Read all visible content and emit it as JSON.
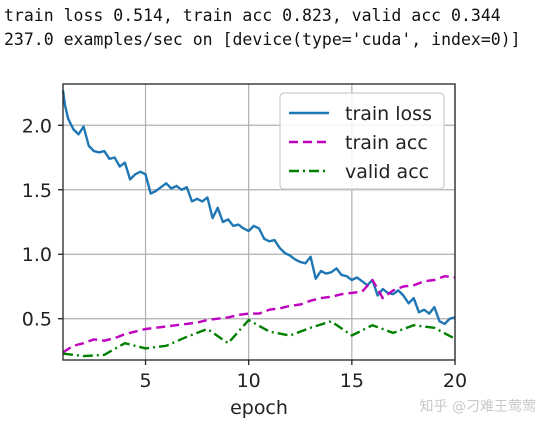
{
  "log": {
    "line1": "train loss 0.514, train acc 0.823, valid acc 0.344",
    "line2": "237.0 examples/sec on [device(type='cuda', index=0)]"
  },
  "watermark": "知乎 @刁难王莺莺",
  "chart_data": {
    "type": "line",
    "xlabel": "epoch",
    "ylabel": "",
    "xlim": [
      1,
      20
    ],
    "ylim": [
      0.18,
      2.32
    ],
    "xticks": [
      5,
      10,
      15,
      20
    ],
    "yticks": [
      0.5,
      1.0,
      1.5,
      2.0
    ],
    "xtick_labels": [
      "5",
      "10",
      "15",
      "20"
    ],
    "ytick_labels": [
      "0.5",
      "1.0",
      "1.5",
      "2.0"
    ],
    "grid": true,
    "legend_position": "top-right",
    "series": [
      {
        "name": "train loss",
        "color": "#1f77b4",
        "style": "solid",
        "x": [
          1.0,
          1.1,
          1.25,
          1.5,
          1.75,
          2.0,
          2.25,
          2.5,
          2.75,
          3.0,
          3.25,
          3.5,
          3.75,
          4.0,
          4.25,
          4.5,
          4.75,
          5.0,
          5.25,
          5.5,
          5.75,
          6.0,
          6.25,
          6.5,
          6.75,
          7.0,
          7.25,
          7.5,
          7.75,
          8.0,
          8.25,
          8.5,
          8.75,
          9.0,
          9.25,
          9.5,
          9.75,
          10.0,
          10.25,
          10.5,
          10.75,
          11.0,
          11.25,
          11.5,
          11.75,
          12.0,
          12.25,
          12.5,
          12.75,
          13.0,
          13.25,
          13.5,
          13.75,
          14.0,
          14.25,
          14.5,
          14.75,
          15.0,
          15.25,
          15.5,
          15.75,
          16.0,
          16.25,
          16.5,
          16.75,
          17.0,
          17.25,
          17.5,
          17.75,
          18.0,
          18.25,
          18.5,
          18.75,
          19.0,
          19.25,
          19.5,
          19.75,
          20.0
        ],
        "y": [
          2.27,
          2.15,
          2.05,
          1.97,
          1.93,
          1.99,
          1.84,
          1.8,
          1.79,
          1.8,
          1.74,
          1.75,
          1.68,
          1.71,
          1.58,
          1.62,
          1.64,
          1.62,
          1.47,
          1.49,
          1.52,
          1.55,
          1.51,
          1.53,
          1.5,
          1.52,
          1.41,
          1.43,
          1.41,
          1.44,
          1.28,
          1.36,
          1.25,
          1.27,
          1.22,
          1.23,
          1.2,
          1.18,
          1.22,
          1.2,
          1.12,
          1.1,
          1.11,
          1.05,
          1.01,
          0.99,
          0.96,
          0.94,
          0.93,
          0.98,
          0.81,
          0.87,
          0.85,
          0.86,
          0.89,
          0.84,
          0.83,
          0.8,
          0.82,
          0.79,
          0.76,
          0.8,
          0.68,
          0.73,
          0.7,
          0.69,
          0.72,
          0.68,
          0.62,
          0.66,
          0.55,
          0.57,
          0.54,
          0.59,
          0.48,
          0.46,
          0.5,
          0.51
        ]
      },
      {
        "name": "train acc",
        "color": "#bf00bf",
        "style": "dashed",
        "x": [
          1.0,
          1.5,
          2.0,
          2.5,
          3.0,
          3.5,
          4.0,
          4.5,
          5.0,
          5.5,
          6.0,
          6.5,
          7.0,
          7.5,
          8.0,
          8.5,
          9.0,
          9.5,
          10.0,
          10.5,
          11.0,
          11.5,
          12.0,
          12.5,
          13.0,
          13.5,
          14.0,
          14.5,
          15.0,
          15.5,
          16.0,
          16.5,
          17.0,
          17.5,
          18.0,
          18.5,
          19.0,
          19.5,
          20.0
        ],
        "y": [
          0.24,
          0.29,
          0.31,
          0.34,
          0.33,
          0.35,
          0.38,
          0.4,
          0.42,
          0.43,
          0.44,
          0.45,
          0.46,
          0.47,
          0.49,
          0.5,
          0.51,
          0.53,
          0.54,
          0.54,
          0.57,
          0.58,
          0.6,
          0.61,
          0.64,
          0.66,
          0.67,
          0.69,
          0.7,
          0.71,
          0.8,
          0.66,
          0.72,
          0.75,
          0.76,
          0.79,
          0.8,
          0.83,
          0.82
        ]
      },
      {
        "name": "valid acc",
        "color": "#008000",
        "style": "dashdot",
        "x": [
          1.0,
          2.0,
          3.0,
          4.0,
          5.0,
          6.0,
          7.0,
          8.0,
          9.0,
          10.0,
          11.0,
          12.0,
          13.0,
          14.0,
          15.0,
          16.0,
          17.0,
          18.0,
          19.0,
          20.0
        ],
        "y": [
          0.23,
          0.21,
          0.22,
          0.31,
          0.27,
          0.29,
          0.36,
          0.42,
          0.31,
          0.49,
          0.4,
          0.37,
          0.43,
          0.48,
          0.37,
          0.45,
          0.39,
          0.45,
          0.43,
          0.344
        ]
      }
    ]
  }
}
